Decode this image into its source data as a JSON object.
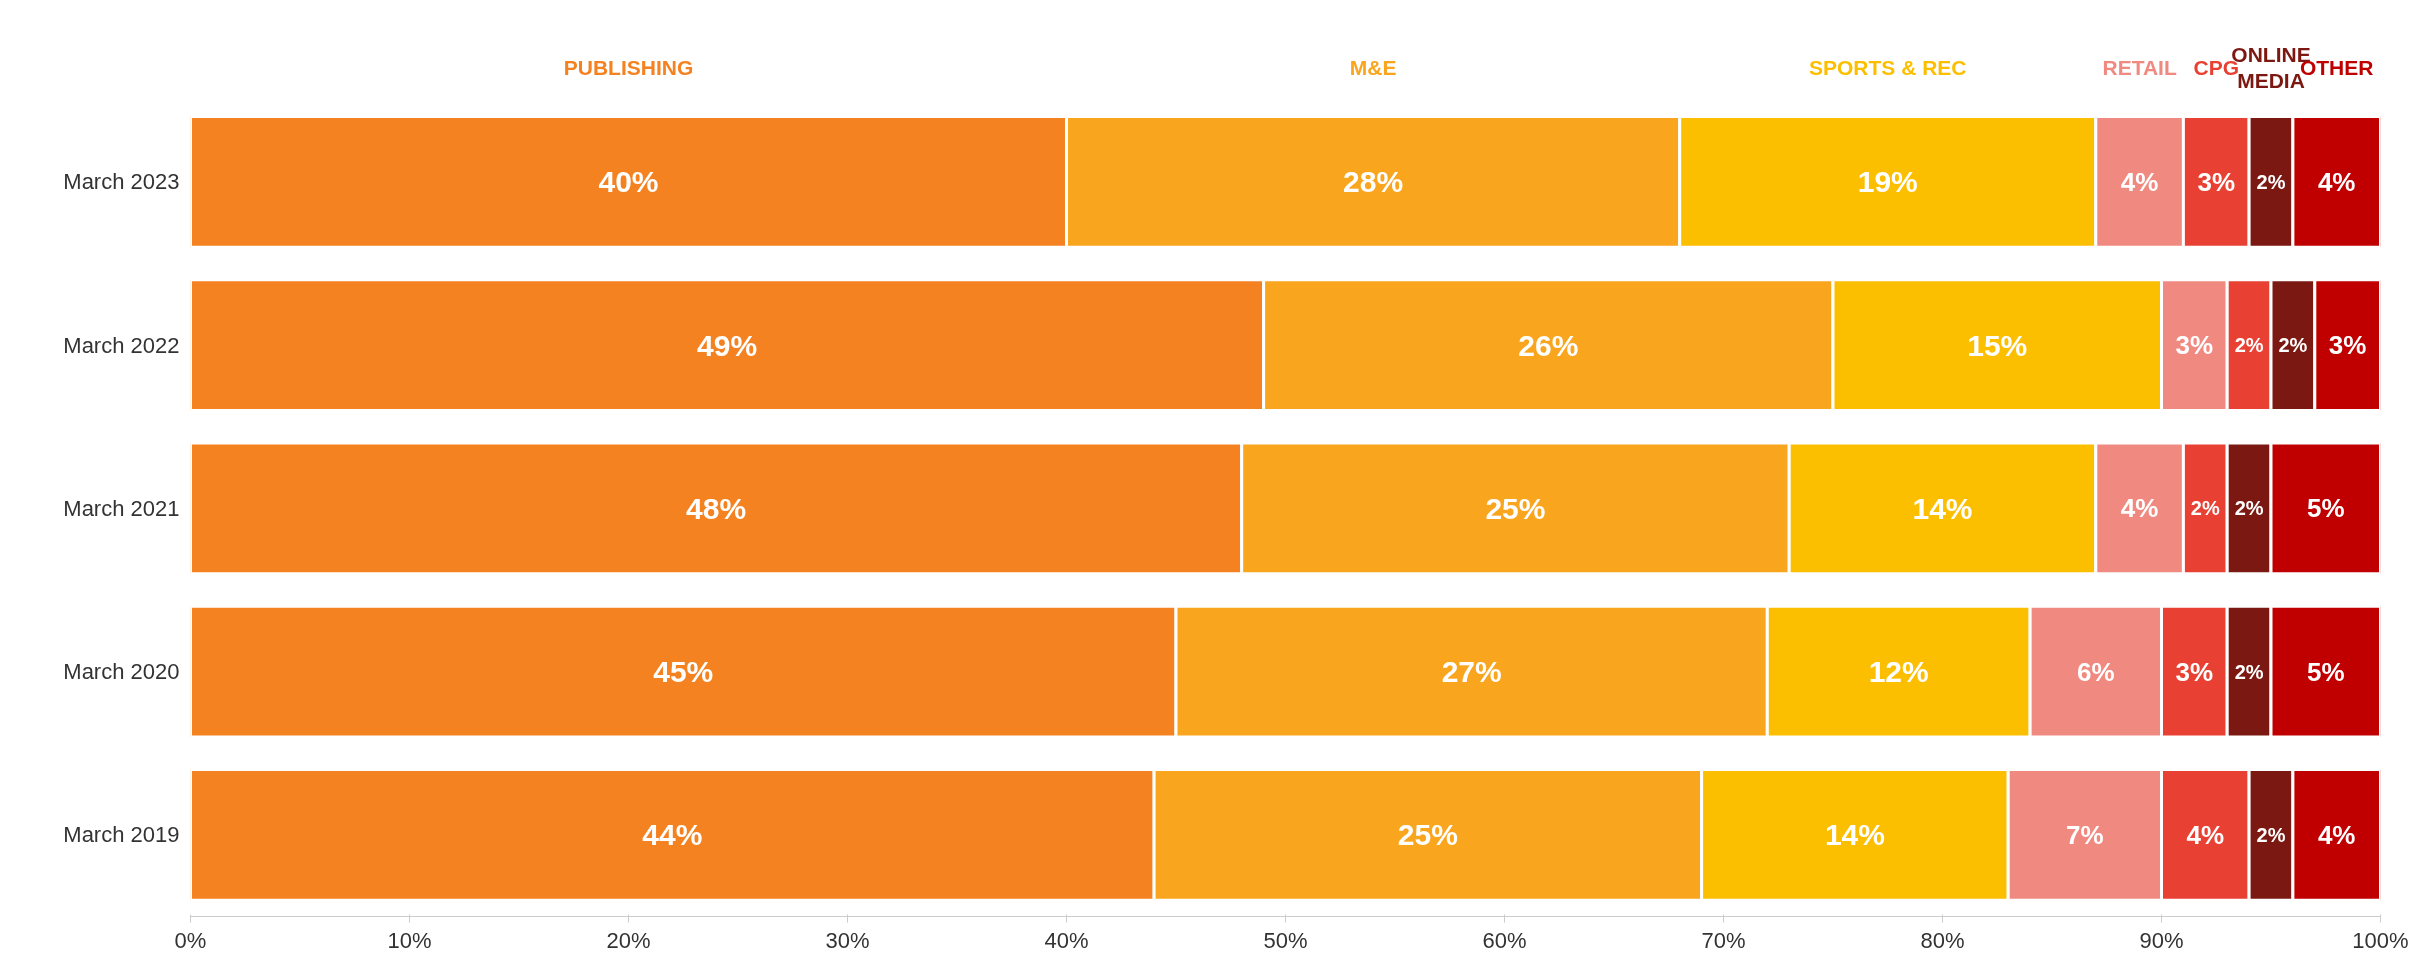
{
  "chart_data": {
    "type": "bar",
    "orientation": "horizontal",
    "stacked": true,
    "legend": false,
    "grid": false,
    "categories": [
      "March 2023",
      "March 2022",
      "March 2021",
      "March 2020",
      "March 2019"
    ],
    "xlim": [
      0,
      100
    ],
    "xticks": [
      {
        "value": 0,
        "label": "0%"
      },
      {
        "value": 10,
        "label": "10%"
      },
      {
        "value": 20,
        "label": "20%"
      },
      {
        "value": 30,
        "label": "30%"
      },
      {
        "value": 40,
        "label": "40%"
      },
      {
        "value": 50,
        "label": "50%"
      },
      {
        "value": 60,
        "label": "60%"
      },
      {
        "value": 70,
        "label": "70%"
      },
      {
        "value": 80,
        "label": "80%"
      },
      {
        "value": 90,
        "label": "90%"
      },
      {
        "value": 100,
        "label": "100%"
      }
    ],
    "series": [
      {
        "name": "PUBLISHING",
        "color": "#f58220",
        "values": [
          40,
          49,
          48,
          45,
          44
        ],
        "value_labels": [
          "40%",
          "49%",
          "48%",
          "45%",
          "44%"
        ]
      },
      {
        "name": "M&E",
        "color": "#f9a51e",
        "values": [
          28,
          26,
          25,
          27,
          25
        ],
        "value_labels": [
          "28%",
          "26%",
          "25%",
          "27%",
          "25%"
        ]
      },
      {
        "name": "SPORTS & REC",
        "color": "#fcbf00",
        "values": [
          19,
          15,
          14,
          12,
          14
        ],
        "value_labels": [
          "19%",
          "15%",
          "14%",
          "12%",
          "14%"
        ]
      },
      {
        "name": "RETAIL",
        "color": "#f08a80",
        "values": [
          4,
          3,
          4,
          6,
          7
        ],
        "value_labels": [
          "4%",
          "3%",
          "4%",
          "6%",
          "7%"
        ]
      },
      {
        "name": "CPG",
        "color": "#e84133",
        "values": [
          3,
          2,
          2,
          3,
          4
        ],
        "value_labels": [
          "3%",
          "2%",
          "2%",
          "3%",
          "4%"
        ]
      },
      {
        "name": "ONLINE MEDIA",
        "color": "#7b1811",
        "values": [
          2,
          2,
          2,
          2,
          2
        ],
        "value_labels": [
          "2%",
          "2%",
          "2%",
          "2%",
          "2%"
        ]
      },
      {
        "name": "OTHER",
        "color": "#c00000",
        "values": [
          4,
          3,
          5,
          5,
          4
        ],
        "value_labels": [
          "4%",
          "3%",
          "5%",
          "5%",
          "4%"
        ]
      }
    ]
  }
}
